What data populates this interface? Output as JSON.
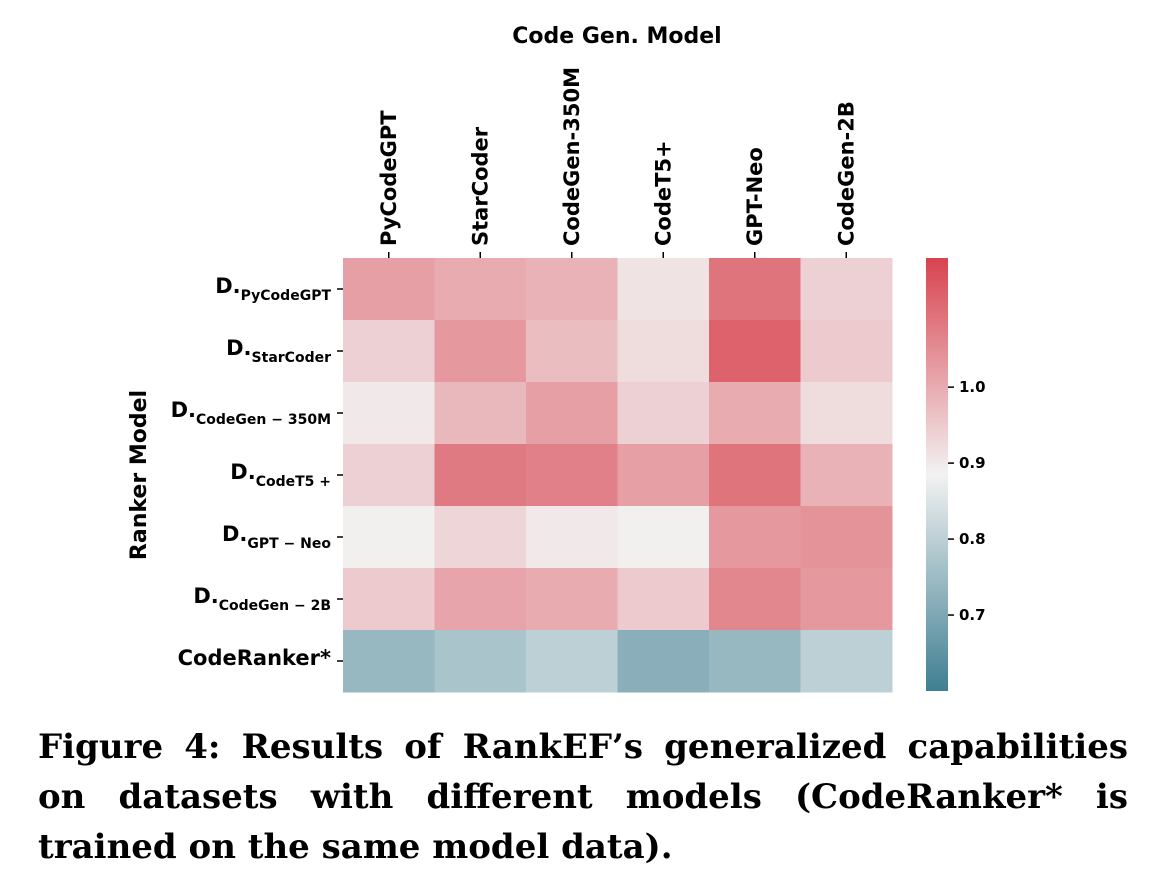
{
  "chart_data": {
    "type": "heatmap",
    "title": "Code Gen. Model",
    "xlabel": "Code Gen. Model",
    "ylabel": "Ranker Model",
    "columns": [
      "PyCodeGPT",
      "StarCoder",
      "CodeGen-350M",
      "CodeT5+",
      "GPT-Neo",
      "CodeGen-2B"
    ],
    "rows": [
      {
        "prefix": "D.",
        "sub": "PyCodeGPT"
      },
      {
        "prefix": "D.",
        "sub": "StarCoder"
      },
      {
        "prefix": "D.",
        "sub": "CodeGen − 350M"
      },
      {
        "prefix": "D.",
        "sub": "CodeT5 +"
      },
      {
        "prefix": "D.",
        "sub": "GPT − Neo"
      },
      {
        "prefix": "D.",
        "sub": "CodeGen − 2B"
      },
      {
        "prefix": "CodeRanker*",
        "sub": ""
      }
    ],
    "values": [
      [
        1.02,
        1.0,
        0.99,
        0.91,
        1.09,
        0.94
      ],
      [
        0.94,
        1.03,
        0.97,
        0.92,
        1.12,
        0.95
      ],
      [
        0.9,
        0.98,
        1.02,
        0.94,
        1.0,
        0.92
      ],
      [
        0.94,
        1.08,
        1.07,
        1.02,
        1.09,
        0.99
      ],
      [
        0.89,
        0.93,
        0.9,
        0.89,
        1.03,
        1.04
      ],
      [
        0.95,
        1.01,
        1.0,
        0.95,
        1.06,
        1.03
      ],
      [
        0.74,
        0.77,
        0.8,
        0.72,
        0.74,
        0.8
      ]
    ],
    "vmin": 0.6,
    "vmax": 1.17,
    "colorbar": {
      "ticks": [
        1.0,
        0.9,
        0.8,
        0.7
      ],
      "tick_labels": [
        "1.0",
        "0.9",
        "0.8",
        "0.7"
      ]
    },
    "colors": {
      "low": "#3f7f92",
      "mid": "#f2f2f2",
      "high": "#d8434f"
    }
  },
  "caption": "Figure 4: Results of RankEF’s generalized capabilities on datasets with different models (CodeRanker* is trained on the same model data)."
}
